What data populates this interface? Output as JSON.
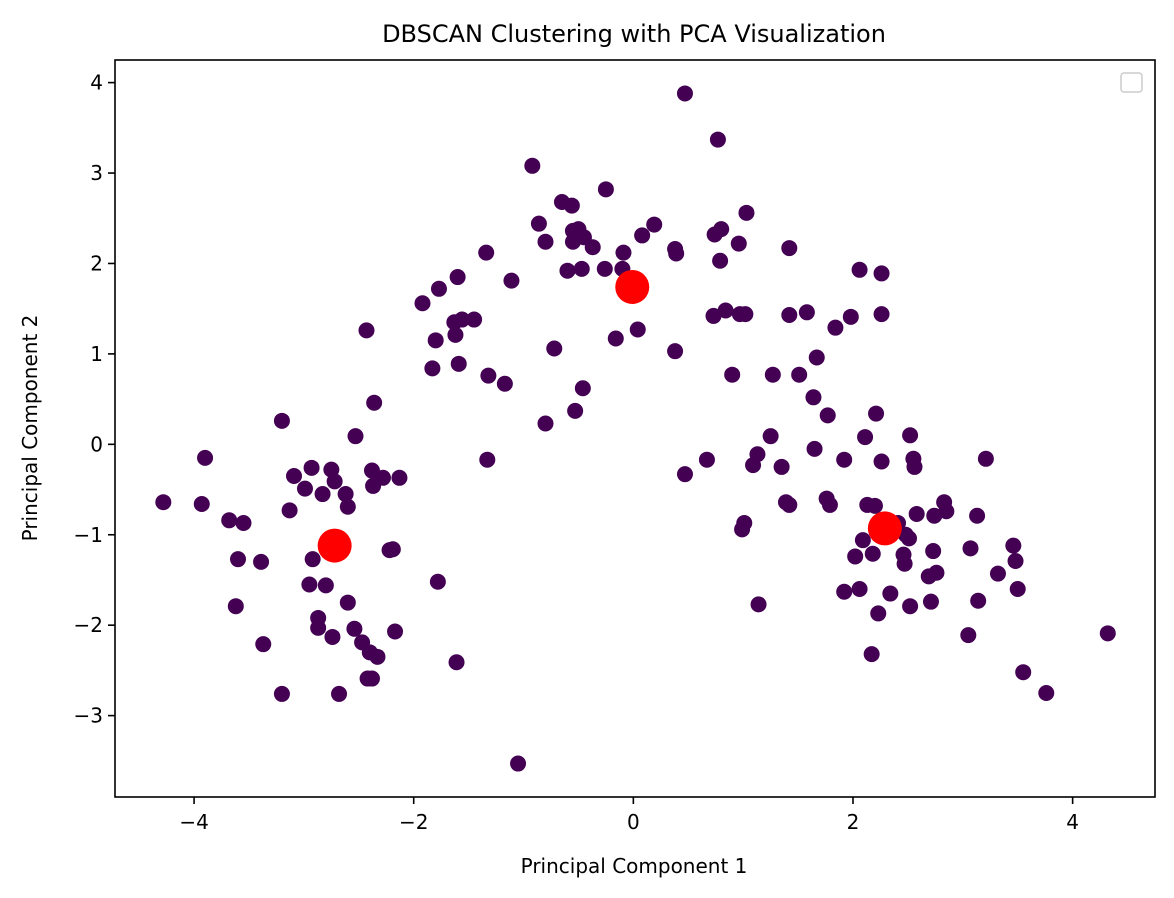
{
  "chart_data": {
    "type": "scatter",
    "title": "DBSCAN Clustering with PCA Visualization",
    "xlabel": "Principal Component 1",
    "ylabel": "Principal Component 2",
    "xlim": [
      -4.72,
      4.75
    ],
    "ylim": [
      -3.9,
      4.25
    ],
    "xticks": [
      -4,
      -2,
      0,
      2,
      4
    ],
    "yticks": [
      -3,
      -2,
      -1,
      0,
      1,
      2,
      3,
      4
    ],
    "grid": false,
    "legend": {
      "placement": "top-right",
      "entries": []
    },
    "colors": {
      "points": "#440154",
      "centers": "#ff0000"
    },
    "series": [
      {
        "values": [
          [
            -4.28,
            -0.64
          ],
          [
            -3.93,
            -0.66
          ],
          [
            -3.9,
            -0.15
          ],
          [
            -3.68,
            -0.84
          ],
          [
            -3.55,
            -0.87
          ],
          [
            -3.6,
            -1.27
          ],
          [
            -3.62,
            -1.79
          ],
          [
            -3.39,
            -1.3
          ],
          [
            -3.37,
            -2.21
          ],
          [
            -3.2,
            0.26
          ],
          [
            -3.2,
            -2.76
          ],
          [
            -3.13,
            -0.73
          ],
          [
            -3.09,
            -0.35
          ],
          [
            -2.99,
            -0.49
          ],
          [
            -2.93,
            -0.26
          ],
          [
            -2.95,
            -1.55
          ],
          [
            -2.92,
            -1.27
          ],
          [
            -2.87,
            -1.92
          ],
          [
            -2.87,
            -2.03
          ],
          [
            -2.83,
            -0.55
          ],
          [
            -2.8,
            -1.56
          ],
          [
            -2.75,
            -0.28
          ],
          [
            -2.72,
            -0.41
          ],
          [
            -2.74,
            -2.13
          ],
          [
            -2.68,
            -2.76
          ],
          [
            -2.62,
            -0.55
          ],
          [
            -2.6,
            -0.69
          ],
          [
            -2.6,
            -1.75
          ],
          [
            -2.54,
            -2.04
          ],
          [
            -2.53,
            0.09
          ],
          [
            -2.47,
            -2.19
          ],
          [
            -2.42,
            -2.59
          ],
          [
            -2.4,
            -2.3
          ],
          [
            -2.38,
            -2.59
          ],
          [
            -2.38,
            -0.29
          ],
          [
            -2.37,
            -0.46
          ],
          [
            -2.36,
            0.46
          ],
          [
            -2.33,
            -2.35
          ],
          [
            -2.28,
            -0.37
          ],
          [
            -2.22,
            -1.17
          ],
          [
            -2.19,
            -1.16
          ],
          [
            -2.17,
            -2.07
          ],
          [
            -2.13,
            -0.37
          ],
          [
            -2.43,
            1.26
          ],
          [
            -1.92,
            1.56
          ],
          [
            -1.83,
            0.84
          ],
          [
            -1.8,
            1.15
          ],
          [
            -1.78,
            -1.52
          ],
          [
            -1.77,
            1.72
          ],
          [
            -1.63,
            1.35
          ],
          [
            -1.62,
            1.21
          ],
          [
            -1.6,
            1.85
          ],
          [
            -1.59,
            0.89
          ],
          [
            -1.56,
            1.38
          ],
          [
            -1.45,
            1.38
          ],
          [
            -1.61,
            -2.41
          ],
          [
            -1.34,
            2.12
          ],
          [
            -1.32,
            0.76
          ],
          [
            -1.33,
            -0.17
          ],
          [
            -1.17,
            0.67
          ],
          [
            -1.11,
            1.81
          ],
          [
            -1.05,
            -3.53
          ],
          [
            -0.92,
            3.08
          ],
          [
            -0.86,
            2.44
          ],
          [
            -0.8,
            0.23
          ],
          [
            -0.8,
            2.24
          ],
          [
            -0.72,
            1.06
          ],
          [
            -0.65,
            2.68
          ],
          [
            -0.6,
            1.92
          ],
          [
            -0.56,
            2.64
          ],
          [
            -0.55,
            2.36
          ],
          [
            -0.55,
            2.24
          ],
          [
            -0.53,
            0.37
          ],
          [
            -0.5,
            2.38
          ],
          [
            -0.47,
            1.94
          ],
          [
            -0.46,
            0.62
          ],
          [
            -0.45,
            2.29
          ],
          [
            -0.37,
            2.18
          ],
          [
            -0.26,
            1.94
          ],
          [
            -0.25,
            2.82
          ],
          [
            -0.16,
            1.17
          ],
          [
            -0.1,
            1.94
          ],
          [
            -0.09,
            2.12
          ],
          [
            0.04,
            1.27
          ],
          [
            0.08,
            2.31
          ],
          [
            0.19,
            2.43
          ],
          [
            0.38,
            2.16
          ],
          [
            0.39,
            2.11
          ],
          [
            0.38,
            1.03
          ],
          [
            0.47,
            3.88
          ],
          [
            0.47,
            -0.33
          ],
          [
            0.67,
            -0.17
          ],
          [
            0.73,
            1.42
          ],
          [
            0.74,
            2.32
          ],
          [
            0.77,
            3.37
          ],
          [
            0.79,
            2.03
          ],
          [
            0.8,
            2.38
          ],
          [
            0.84,
            1.48
          ],
          [
            0.9,
            0.77
          ],
          [
            0.96,
            2.22
          ],
          [
            0.97,
            1.44
          ],
          [
            1.02,
            1.44
          ],
          [
            1.03,
            2.56
          ],
          [
            0.99,
            -0.94
          ],
          [
            1.01,
            -0.87
          ],
          [
            1.09,
            -0.23
          ],
          [
            1.13,
            -0.11
          ],
          [
            1.14,
            -1.77
          ],
          [
            1.25,
            0.09
          ],
          [
            1.27,
            0.77
          ],
          [
            1.35,
            -0.25
          ],
          [
            1.39,
            -0.64
          ],
          [
            1.42,
            -0.67
          ],
          [
            1.42,
            2.17
          ],
          [
            1.42,
            1.43
          ],
          [
            1.58,
            1.46
          ],
          [
            1.51,
            0.77
          ],
          [
            1.64,
            0.52
          ],
          [
            1.65,
            -0.05
          ],
          [
            1.67,
            0.96
          ],
          [
            1.76,
            -0.6
          ],
          [
            1.77,
            0.32
          ],
          [
            1.79,
            -0.67
          ],
          [
            1.84,
            1.29
          ],
          [
            1.92,
            -0.17
          ],
          [
            1.92,
            -1.63
          ],
          [
            1.98,
            1.41
          ],
          [
            2.02,
            -1.24
          ],
          [
            2.06,
            1.93
          ],
          [
            2.06,
            -1.6
          ],
          [
            2.09,
            -1.06
          ],
          [
            2.11,
            0.08
          ],
          [
            2.13,
            -0.67
          ],
          [
            2.17,
            -2.32
          ],
          [
            2.18,
            -1.21
          ],
          [
            2.2,
            -0.68
          ],
          [
            2.21,
            0.34
          ],
          [
            2.23,
            -1.87
          ],
          [
            2.26,
            1.89
          ],
          [
            2.26,
            1.44
          ],
          [
            2.26,
            -0.19
          ],
          [
            2.34,
            -1.65
          ],
          [
            2.41,
            -0.87
          ],
          [
            2.46,
            -1.22
          ],
          [
            2.47,
            -1.32
          ],
          [
            2.48,
            -1.0
          ],
          [
            2.51,
            -1.04
          ],
          [
            2.52,
            -1.79
          ],
          [
            2.52,
            0.1
          ],
          [
            2.55,
            -0.16
          ],
          [
            2.56,
            -0.25
          ],
          [
            2.58,
            -0.77
          ],
          [
            2.69,
            -1.46
          ],
          [
            2.71,
            -1.74
          ],
          [
            2.73,
            -1.18
          ],
          [
            2.74,
            -0.79
          ],
          [
            2.76,
            -1.42
          ],
          [
            2.83,
            -0.64
          ],
          [
            2.85,
            -0.74
          ],
          [
            3.05,
            -2.11
          ],
          [
            3.07,
            -1.15
          ],
          [
            3.13,
            -0.79
          ],
          [
            3.14,
            -1.73
          ],
          [
            3.21,
            -0.16
          ],
          [
            3.32,
            -1.43
          ],
          [
            3.46,
            -1.12
          ],
          [
            3.48,
            -1.29
          ],
          [
            3.5,
            -1.6
          ],
          [
            3.55,
            -2.52
          ],
          [
            3.76,
            -2.75
          ],
          [
            4.32,
            -2.09
          ]
        ]
      },
      {
        "values": [
          [
            -2.72,
            -1.12
          ],
          [
            -0.01,
            1.74
          ],
          [
            2.29,
            -0.93
          ]
        ]
      }
    ]
  }
}
